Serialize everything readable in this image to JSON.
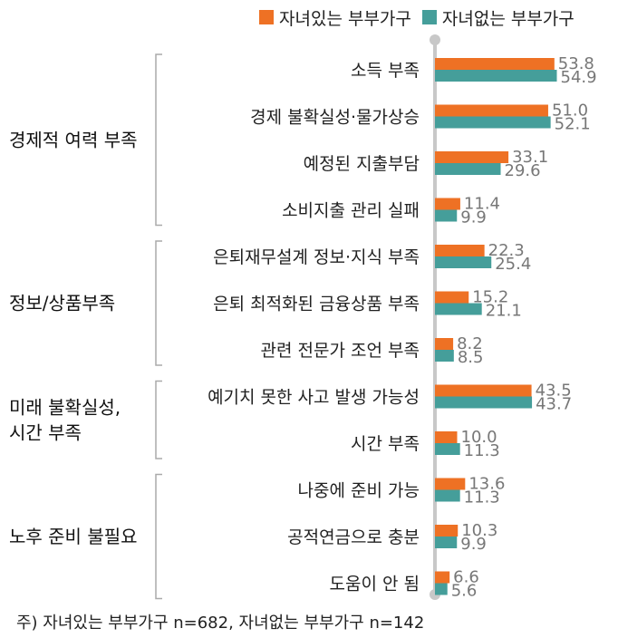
{
  "colors": {
    "with_children": "#ee7124",
    "without_children": "#459e9a",
    "axis": "#c8c8c8",
    "bracket": "#aaaaaa",
    "value_text": "#777777"
  },
  "legend": {
    "with_children": "자녀있는 부부가구",
    "without_children": "자녀없는 부부가구"
  },
  "note": "주) 자녀있는 부부가구 n=682, 자녀없는 부부가구 n=142",
  "chart_data": {
    "type": "bar",
    "orientation": "horizontal",
    "categories": [
      "소득 부족",
      "경제 불확실성·물가상승",
      "예정된 지출부담",
      "소비지출 관리 실패",
      "은퇴재무설계 정보·지식 부족",
      "은퇴 최적화된 금융상품 부족",
      "관련 전문가 조언 부족",
      "예기치 못한 사고 발생 가능성",
      "시간 부족",
      "나중에 준비 가능",
      "공적연금으로 충분",
      "도움이 안 됨"
    ],
    "series": [
      {
        "name": "자녀있는 부부가구",
        "values": [
          53.8,
          51.0,
          33.1,
          11.4,
          22.3,
          15.2,
          8.2,
          43.5,
          10.0,
          13.6,
          10.3,
          6.6
        ]
      },
      {
        "name": "자녀없는 부부가구",
        "values": [
          54.9,
          52.1,
          29.6,
          9.9,
          25.4,
          21.1,
          8.5,
          43.7,
          11.3,
          11.3,
          9.9,
          5.6
        ]
      }
    ],
    "value_labels": {
      "with_children": [
        "53.8",
        "51.0",
        "33.1",
        "11.4",
        "22.3",
        "15.2",
        "8.2",
        "43.5",
        "10.0",
        "13.6",
        "10.3",
        "6.6"
      ],
      "without_children": [
        "54.9",
        "52.1",
        "29.6",
        "9.9",
        "25.4",
        "21.1",
        "8.5",
        "43.7",
        "11.3",
        "11.3",
        "9.9",
        "5.6"
      ]
    },
    "groups": [
      {
        "lines": [
          "경제적 여력 부족"
        ],
        "start": 0,
        "end": 3
      },
      {
        "lines": [
          "정보/상품부족"
        ],
        "start": 4,
        "end": 6
      },
      {
        "lines": [
          "미래 불확실성,",
          "시간 부족"
        ],
        "start": 7,
        "end": 8
      },
      {
        "lines": [
          "노후 준비 불필요"
        ],
        "start": 9,
        "end": 11
      }
    ],
    "legend_position": "top-right",
    "grid": false
  }
}
